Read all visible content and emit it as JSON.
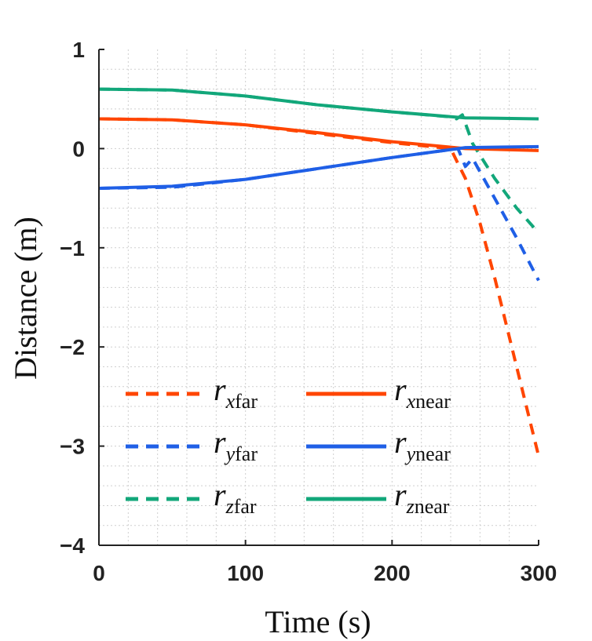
{
  "chart_data": {
    "type": "line",
    "title": "",
    "xlabel": "Time (s)",
    "ylabel": "Distance (m)",
    "xlim": [
      0,
      300
    ],
    "ylim": [
      -4,
      1
    ],
    "xticks": [
      0,
      100,
      200,
      300
    ],
    "xtick_labels": [
      "0",
      "100",
      "200",
      "300"
    ],
    "yticks": [
      1,
      0,
      -1,
      -2,
      -3,
      -4
    ],
    "ytick_labels": [
      "1",
      "0",
      "−1",
      "−2",
      "−3",
      "−4"
    ],
    "grid": true,
    "minor_grid": true,
    "legend_position": "bottom-center",
    "series": [
      {
        "name": "r_xfar",
        "label_symbol": "r",
        "label_sub_var": "x",
        "label_sub_text": "far",
        "color": "#FF4500",
        "style": "dashed",
        "x": [
          0,
          50,
          100,
          150,
          200,
          240,
          245,
          250,
          260,
          270,
          280,
          290,
          300
        ],
        "y": [
          0.3,
          0.29,
          0.24,
          0.15,
          0.06,
          0.0,
          -0.15,
          -0.3,
          -0.75,
          -1.3,
          -1.9,
          -2.5,
          -3.1
        ]
      },
      {
        "name": "r_yfar",
        "label_symbol": "r",
        "label_sub_var": "y",
        "label_sub_text": "far",
        "color": "#1F5FE6",
        "style": "dashed",
        "x": [
          0,
          50,
          100,
          150,
          200,
          245,
          250,
          255,
          270,
          285,
          300
        ],
        "y": [
          -0.4,
          -0.39,
          -0.31,
          -0.2,
          -0.09,
          -0.0,
          -0.18,
          -0.1,
          -0.5,
          -0.9,
          -1.33
        ]
      },
      {
        "name": "r_zfar",
        "label_symbol": "r",
        "label_sub_var": "z",
        "label_sub_text": "far",
        "color": "#12A77A",
        "style": "dashed",
        "x": [
          0,
          50,
          100,
          150,
          200,
          240,
          244,
          248,
          255,
          270,
          285,
          300
        ],
        "y": [
          0.6,
          0.59,
          0.53,
          0.44,
          0.37,
          0.32,
          0.3,
          0.34,
          0.05,
          -0.3,
          -0.6,
          -0.85
        ]
      },
      {
        "name": "r_xnear",
        "label_symbol": "r",
        "label_sub_var": "x",
        "label_sub_text": "near",
        "color": "#FF4500",
        "style": "solid",
        "x": [
          0,
          50,
          100,
          150,
          200,
          250,
          300
        ],
        "y": [
          0.3,
          0.29,
          0.24,
          0.16,
          0.07,
          0.0,
          -0.02
        ]
      },
      {
        "name": "r_ynear",
        "label_symbol": "r",
        "label_sub_var": "y",
        "label_sub_text": "near",
        "color": "#1F5FE6",
        "style": "solid",
        "x": [
          0,
          50,
          100,
          150,
          200,
          250,
          300
        ],
        "y": [
          -0.4,
          -0.38,
          -0.31,
          -0.2,
          -0.09,
          0.01,
          0.02
        ]
      },
      {
        "name": "r_znear",
        "label_symbol": "r",
        "label_sub_var": "z",
        "label_sub_text": "near",
        "color": "#12A77A",
        "style": "solid",
        "x": [
          0,
          50,
          100,
          150,
          200,
          250,
          300
        ],
        "y": [
          0.6,
          0.59,
          0.53,
          0.44,
          0.37,
          0.31,
          0.3
        ]
      }
    ]
  }
}
